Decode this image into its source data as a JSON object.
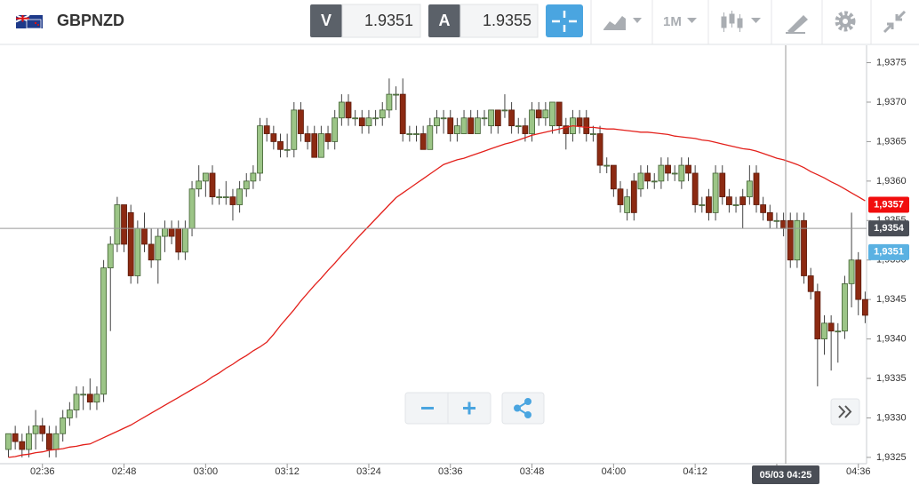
{
  "toolbar": {
    "symbol": "GBPNZD",
    "bid_label": "V",
    "bid": "1.9351",
    "ask_label": "A",
    "ask": "1.9355",
    "timeframe": "1M"
  },
  "chart_data": {
    "type": "candlestick",
    "categories": [
      null,
      null,
      null,
      null,
      null,
      "02:36",
      null,
      null,
      null,
      null,
      null,
      null,
      null,
      null,
      null,
      null,
      null,
      "02:48",
      null,
      null,
      null,
      null,
      null,
      null,
      null,
      null,
      null,
      null,
      null,
      "03:00",
      null,
      null,
      null,
      null,
      null,
      null,
      null,
      null,
      null,
      null,
      null,
      "03:12",
      null,
      null,
      null,
      null,
      null,
      null,
      null,
      null,
      null,
      null,
      null,
      "03:24",
      null,
      null,
      null,
      null,
      null,
      null,
      null,
      null,
      null,
      null,
      null,
      "03:36",
      null,
      null,
      null,
      null,
      null,
      null,
      null,
      null,
      null,
      null,
      null,
      "03:48",
      null,
      null,
      null,
      null,
      null,
      null,
      null,
      null,
      null,
      null,
      null,
      "04:00",
      null,
      null,
      null,
      null,
      null,
      null,
      null,
      null,
      null,
      null,
      null,
      "04:12",
      null,
      null,
      null,
      null,
      null,
      null,
      null,
      null,
      null,
      null,
      null,
      "04:24",
      null,
      null,
      null,
      null,
      null,
      null,
      null,
      null,
      null,
      null,
      null,
      "04:36",
      null
    ],
    "series": [
      {
        "type": "candlestick",
        "up_color": "#9cc587",
        "down_color": "#8c2a12",
        "ohlc": [
          [
            1.9326,
            1.9328,
            1.9325,
            1.9328
          ],
          [
            1.9328,
            1.9329,
            1.9326,
            1.9327
          ],
          [
            1.9327,
            1.9328,
            1.9325,
            1.9326
          ],
          [
            1.9326,
            1.9329,
            1.9325,
            1.9328
          ],
          [
            1.9328,
            1.9331,
            1.9326,
            1.9329
          ],
          [
            1.9329,
            1.933,
            1.9327,
            1.9328
          ],
          [
            1.9328,
            1.9329,
            1.9325,
            1.9326
          ],
          [
            1.9326,
            1.9329,
            1.9325,
            1.9328
          ],
          [
            1.9328,
            1.9331,
            1.9327,
            1.933
          ],
          [
            1.933,
            1.9332,
            1.9329,
            1.9331
          ],
          [
            1.9331,
            1.9334,
            1.933,
            1.9333
          ],
          [
            1.9333,
            1.9334,
            1.9331,
            1.9333
          ],
          [
            1.9333,
            1.9335,
            1.9331,
            1.9332
          ],
          [
            1.9332,
            1.9334,
            1.9331,
            1.9333
          ],
          [
            1.9333,
            1.935,
            1.9332,
            1.9349
          ],
          [
            1.9349,
            1.9353,
            1.9341,
            1.9352
          ],
          [
            1.9352,
            1.9358,
            1.9351,
            1.9357
          ],
          [
            1.9357,
            1.9357,
            1.9351,
            1.9352
          ],
          [
            1.9356,
            1.9357,
            1.9347,
            1.9348
          ],
          [
            1.9348,
            1.9355,
            1.9347,
            1.9354
          ],
          [
            1.9354,
            1.9356,
            1.9351,
            1.9352
          ],
          [
            1.9352,
            1.9354,
            1.9349,
            1.935
          ],
          [
            1.935,
            1.9354,
            1.9347,
            1.9353
          ],
          [
            1.9353,
            1.9355,
            1.9351,
            1.9354
          ],
          [
            1.9354,
            1.9355,
            1.9352,
            1.9353
          ],
          [
            1.9354,
            1.9355,
            1.935,
            1.9351
          ],
          [
            1.9351,
            1.9355,
            1.935,
            1.9354
          ],
          [
            1.9354,
            1.936,
            1.9353,
            1.9359
          ],
          [
            1.9359,
            1.9362,
            1.9358,
            1.936
          ],
          [
            1.936,
            1.9361,
            1.9358,
            1.9361
          ],
          [
            1.9361,
            1.9362,
            1.9357,
            1.9358
          ],
          [
            1.9358,
            1.9359,
            1.9357,
            1.9358
          ],
          [
            1.9358,
            1.936,
            1.9357,
            1.9358
          ],
          [
            1.9358,
            1.9359,
            1.9355,
            1.9357
          ],
          [
            1.9357,
            1.936,
            1.9356,
            1.9359
          ],
          [
            1.9359,
            1.9361,
            1.9358,
            1.936
          ],
          [
            1.936,
            1.9362,
            1.9359,
            1.9361
          ],
          [
            1.9361,
            1.9368,
            1.936,
            1.9367
          ],
          [
            1.9367,
            1.9368,
            1.9365,
            1.9366
          ],
          [
            1.9366,
            1.9367,
            1.9364,
            1.9365
          ],
          [
            1.9365,
            1.9366,
            1.9363,
            1.9364
          ],
          [
            1.9364,
            1.9366,
            1.9363,
            1.9364
          ],
          [
            1.9364,
            1.937,
            1.9363,
            1.9369
          ],
          [
            1.9369,
            1.937,
            1.9365,
            1.9366
          ],
          [
            1.9366,
            1.9367,
            1.9364,
            1.9365
          ],
          [
            1.9366,
            1.9367,
            1.9363,
            1.9363
          ],
          [
            1.9363,
            1.9367,
            1.9363,
            1.9366
          ],
          [
            1.9366,
            1.9367,
            1.9364,
            1.9365
          ],
          [
            1.9365,
            1.9369,
            1.9364,
            1.9368
          ],
          [
            1.9368,
            1.9371,
            1.9367,
            1.937
          ],
          [
            1.937,
            1.9371,
            1.9367,
            1.9368
          ],
          [
            1.9368,
            1.9369,
            1.9367,
            1.9368
          ],
          [
            1.9368,
            1.9369,
            1.9366,
            1.9367
          ],
          [
            1.9367,
            1.9369,
            1.9366,
            1.9368
          ],
          [
            1.9368,
            1.9369,
            1.9367,
            1.9368
          ],
          [
            1.9368,
            1.937,
            1.9367,
            1.9369
          ],
          [
            1.9369,
            1.9373,
            1.9368,
            1.9371
          ],
          [
            1.9371,
            1.9372,
            1.9369,
            1.9371
          ],
          [
            1.9371,
            1.9373,
            1.9365,
            1.9366
          ],
          [
            1.9366,
            1.9367,
            1.9365,
            1.9366
          ],
          [
            1.9366,
            1.9367,
            1.9365,
            1.9366
          ],
          [
            1.9366,
            1.9367,
            1.9364,
            1.9364
          ],
          [
            1.9364,
            1.9368,
            1.9364,
            1.9367
          ],
          [
            1.9367,
            1.9369,
            1.9366,
            1.9368
          ],
          [
            1.9368,
            1.9369,
            1.9366,
            1.9368
          ],
          [
            1.9368,
            1.9369,
            1.9365,
            1.9366
          ],
          [
            1.9366,
            1.9368,
            1.9365,
            1.9367
          ],
          [
            1.9366,
            1.9369,
            1.9366,
            1.9368
          ],
          [
            1.9368,
            1.9369,
            1.9366,
            1.9366
          ],
          [
            1.9366,
            1.9369,
            1.9366,
            1.9368
          ],
          [
            1.9368,
            1.9369,
            1.9367,
            1.9368
          ],
          [
            1.9367,
            1.9369,
            1.9366,
            1.9369
          ],
          [
            1.9369,
            1.9369,
            1.9366,
            1.9367
          ],
          [
            1.9369,
            1.9371,
            1.9368,
            1.9369
          ],
          [
            1.9369,
            1.937,
            1.9366,
            1.9367
          ],
          [
            1.9367,
            1.9368,
            1.9366,
            1.9367
          ],
          [
            1.9367,
            1.9368,
            1.9365,
            1.9366
          ],
          [
            1.9366,
            1.937,
            1.9365,
            1.9369
          ],
          [
            1.9369,
            1.937,
            1.9367,
            1.9368
          ],
          [
            1.9368,
            1.937,
            1.9367,
            1.9369
          ],
          [
            1.9367,
            1.937,
            1.9366,
            1.937
          ],
          [
            1.937,
            1.937,
            1.9366,
            1.9367
          ],
          [
            1.9367,
            1.9368,
            1.9364,
            1.9366
          ],
          [
            1.9366,
            1.9369,
            1.9365,
            1.9368
          ],
          [
            1.9368,
            1.9369,
            1.9366,
            1.9367
          ],
          [
            1.9368,
            1.9369,
            1.9365,
            1.9366
          ],
          [
            1.9366,
            1.9367,
            1.9365,
            1.9366
          ],
          [
            1.9366,
            1.9367,
            1.9361,
            1.9362
          ],
          [
            1.9362,
            1.9363,
            1.9361,
            1.9362
          ],
          [
            1.9362,
            1.9362,
            1.9358,
            1.9359
          ],
          [
            1.9359,
            1.936,
            1.9356,
            1.9357
          ],
          [
            1.9356,
            1.9359,
            1.9355,
            1.9358
          ],
          [
            1.936,
            1.9361,
            1.9355,
            1.9356
          ],
          [
            1.9359,
            1.9362,
            1.9358,
            1.9361
          ],
          [
            1.9361,
            1.9362,
            1.9359,
            1.936
          ],
          [
            1.936,
            1.9361,
            1.9359,
            1.936
          ],
          [
            1.936,
            1.9363,
            1.9359,
            1.9362
          ],
          [
            1.9362,
            1.9363,
            1.936,
            1.9361
          ],
          [
            1.9361,
            1.9362,
            1.936,
            1.9361
          ],
          [
            1.936,
            1.9363,
            1.9359,
            1.9362
          ],
          [
            1.9362,
            1.9363,
            1.936,
            1.9361
          ],
          [
            1.9361,
            1.9362,
            1.9356,
            1.9357
          ],
          [
            1.9357,
            1.9358,
            1.9356,
            1.9357
          ],
          [
            1.9358,
            1.9359,
            1.9355,
            1.9356
          ],
          [
            1.9356,
            1.9362,
            1.9355,
            1.9361
          ],
          [
            1.9361,
            1.9362,
            1.9357,
            1.9358
          ],
          [
            1.9358,
            1.9359,
            1.9356,
            1.9357
          ],
          [
            1.9357,
            1.9358,
            1.9356,
            1.9357
          ],
          [
            1.9358,
            1.9359,
            1.9354,
            1.9357
          ],
          [
            1.9358,
            1.9362,
            1.9357,
            1.936
          ],
          [
            1.9361,
            1.9362,
            1.9356,
            1.9357
          ],
          [
            1.9357,
            1.9358,
            1.9355,
            1.9356
          ],
          [
            1.9356,
            1.9357,
            1.9354,
            1.9355
          ],
          [
            1.9355,
            1.9356,
            1.9354,
            1.9355
          ],
          [
            1.9355,
            1.9356,
            1.9353,
            1.9354
          ],
          [
            1.9355,
            1.9356,
            1.9349,
            1.935
          ],
          [
            1.935,
            1.9356,
            1.9349,
            1.9355
          ],
          [
            1.9355,
            1.9356,
            1.9347,
            1.9348
          ],
          [
            1.9348,
            1.9349,
            1.9345,
            1.9346
          ],
          [
            1.9346,
            1.9347,
            1.9334,
            1.934
          ],
          [
            1.934,
            1.9343,
            1.9338,
            1.9342
          ],
          [
            1.9342,
            1.9343,
            1.9336,
            1.9341
          ],
          [
            1.9341,
            1.9342,
            1.9337,
            1.9341
          ],
          [
            1.9341,
            1.9348,
            1.934,
            1.9347
          ],
          [
            1.9347,
            1.9356,
            1.9344,
            1.935
          ],
          [
            1.935,
            1.9351,
            1.9343,
            1.9345
          ],
          [
            1.9345,
            1.9346,
            1.9342,
            1.9343
          ]
        ]
      },
      {
        "type": "line",
        "color": "#e3201b",
        "values": [
          1.9325,
          1.93251,
          1.93253,
          1.93254,
          1.93256,
          1.93257,
          1.93259,
          1.9326,
          1.93261,
          1.93263,
          1.93264,
          1.93266,
          1.93267,
          1.93271,
          1.93275,
          1.93279,
          1.93283,
          1.93287,
          1.93291,
          1.93296,
          1.93301,
          1.93306,
          1.93311,
          1.93316,
          1.93321,
          1.93326,
          1.93331,
          1.93336,
          1.93341,
          1.93346,
          1.93352,
          1.93357,
          1.93363,
          1.93368,
          1.93374,
          1.93379,
          1.93385,
          1.9339,
          1.93396,
          1.93406,
          1.93417,
          1.93427,
          1.93437,
          1.93448,
          1.93458,
          1.93468,
          1.93477,
          1.93487,
          1.93496,
          1.93506,
          1.93515,
          1.93525,
          1.93534,
          1.93543,
          1.93552,
          1.93561,
          1.9357,
          1.93579,
          1.93585,
          1.93591,
          1.93597,
          1.93603,
          1.93609,
          1.93615,
          1.93621,
          1.93624,
          1.93627,
          1.93629,
          1.93632,
          1.93635,
          1.93638,
          1.93641,
          1.93644,
          1.93647,
          1.93649,
          1.93652,
          1.93655,
          1.93658,
          1.9366,
          1.93662,
          1.93664,
          1.93666,
          1.93668,
          1.9367,
          1.93669,
          1.93668,
          1.93668,
          1.93667,
          1.93666,
          1.93666,
          1.93665,
          1.93664,
          1.93663,
          1.93662,
          1.93662,
          1.93661,
          1.9366,
          1.93659,
          1.93657,
          1.93656,
          1.93655,
          1.93654,
          1.93652,
          1.93651,
          1.93649,
          1.93647,
          1.93645,
          1.93643,
          1.93641,
          1.9364,
          1.93638,
          1.93635,
          1.93632,
          1.93629,
          1.93627,
          1.93624,
          1.93621,
          1.93617,
          1.93612,
          1.93608,
          1.93604,
          1.93599,
          1.93595,
          1.9359,
          1.93585,
          1.9358,
          1.93575
        ]
      }
    ],
    "ylim": [
      1.93242,
      1.93772
    ],
    "yticks": [
      {
        "value": 1.9325,
        "label": "1,9325"
      },
      {
        "value": 1.933,
        "label": "1,9330"
      },
      {
        "value": 1.9335,
        "label": "1,9335"
      },
      {
        "value": 1.934,
        "label": "1,9340"
      },
      {
        "value": 1.9345,
        "label": "1,9345"
      },
      {
        "value": 1.935,
        "label": "1,9350"
      },
      {
        "value": 1.9355,
        "label": "1,9355"
      },
      {
        "value": 1.936,
        "label": "1,9360"
      },
      {
        "value": 1.9365,
        "label": "1,9365"
      },
      {
        "value": 1.937,
        "label": "1,9370"
      },
      {
        "value": 1.9375,
        "label": "1,9375"
      }
    ],
    "grid": false,
    "price_labels": [
      {
        "value": 1.9357,
        "label": "1,9357",
        "color": "#f10d0d"
      },
      {
        "value": 1.9354,
        "label": "1,9354",
        "color": "#4a4e56"
      },
      {
        "value": 1.9351,
        "label": "1,9351",
        "color": "#5ab1e2"
      }
    ],
    "crosshair": {
      "time": "05/03 04:25"
    }
  }
}
